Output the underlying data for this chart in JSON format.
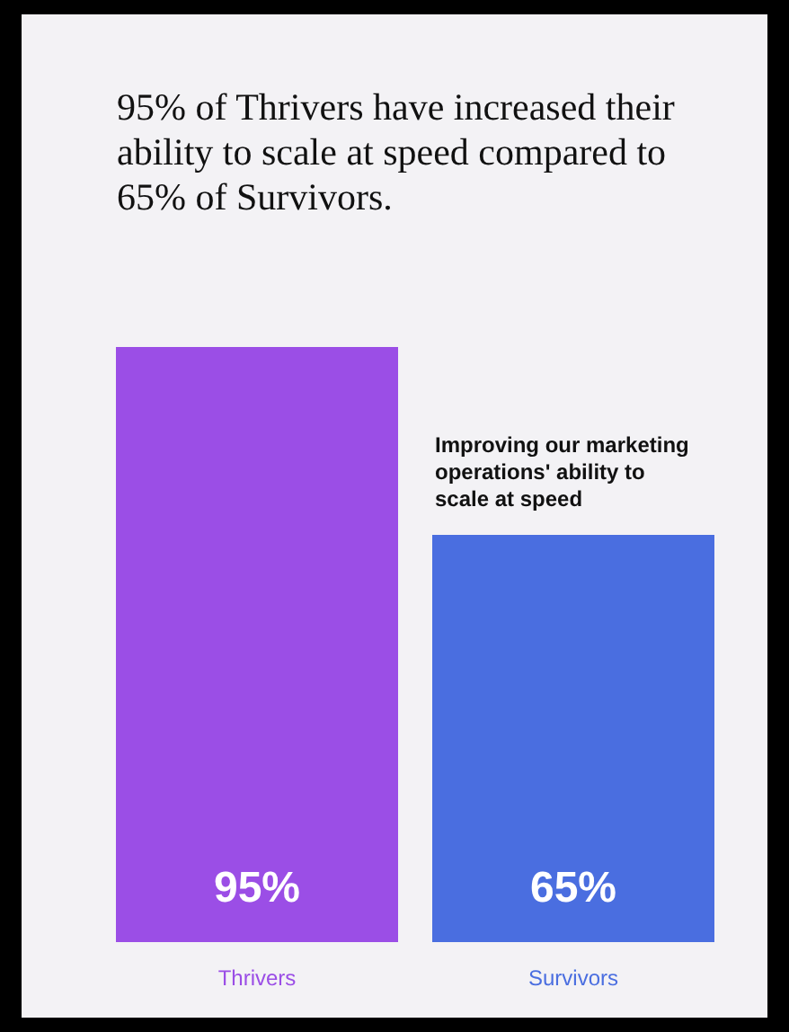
{
  "chart_data": {
    "type": "bar",
    "title": "95% of Thrivers have increased their ability to scale at speed compared to 65% of Survivors.",
    "categories": [
      "Thrivers",
      "Survivors"
    ],
    "values": [
      95,
      65
    ],
    "value_labels": [
      "95%",
      "65%"
    ],
    "colors": [
      "#9b4ee6",
      "#4a6ee0"
    ],
    "annotations": [
      "Improving our marketing operations' ability to scale at speed"
    ]
  }
}
